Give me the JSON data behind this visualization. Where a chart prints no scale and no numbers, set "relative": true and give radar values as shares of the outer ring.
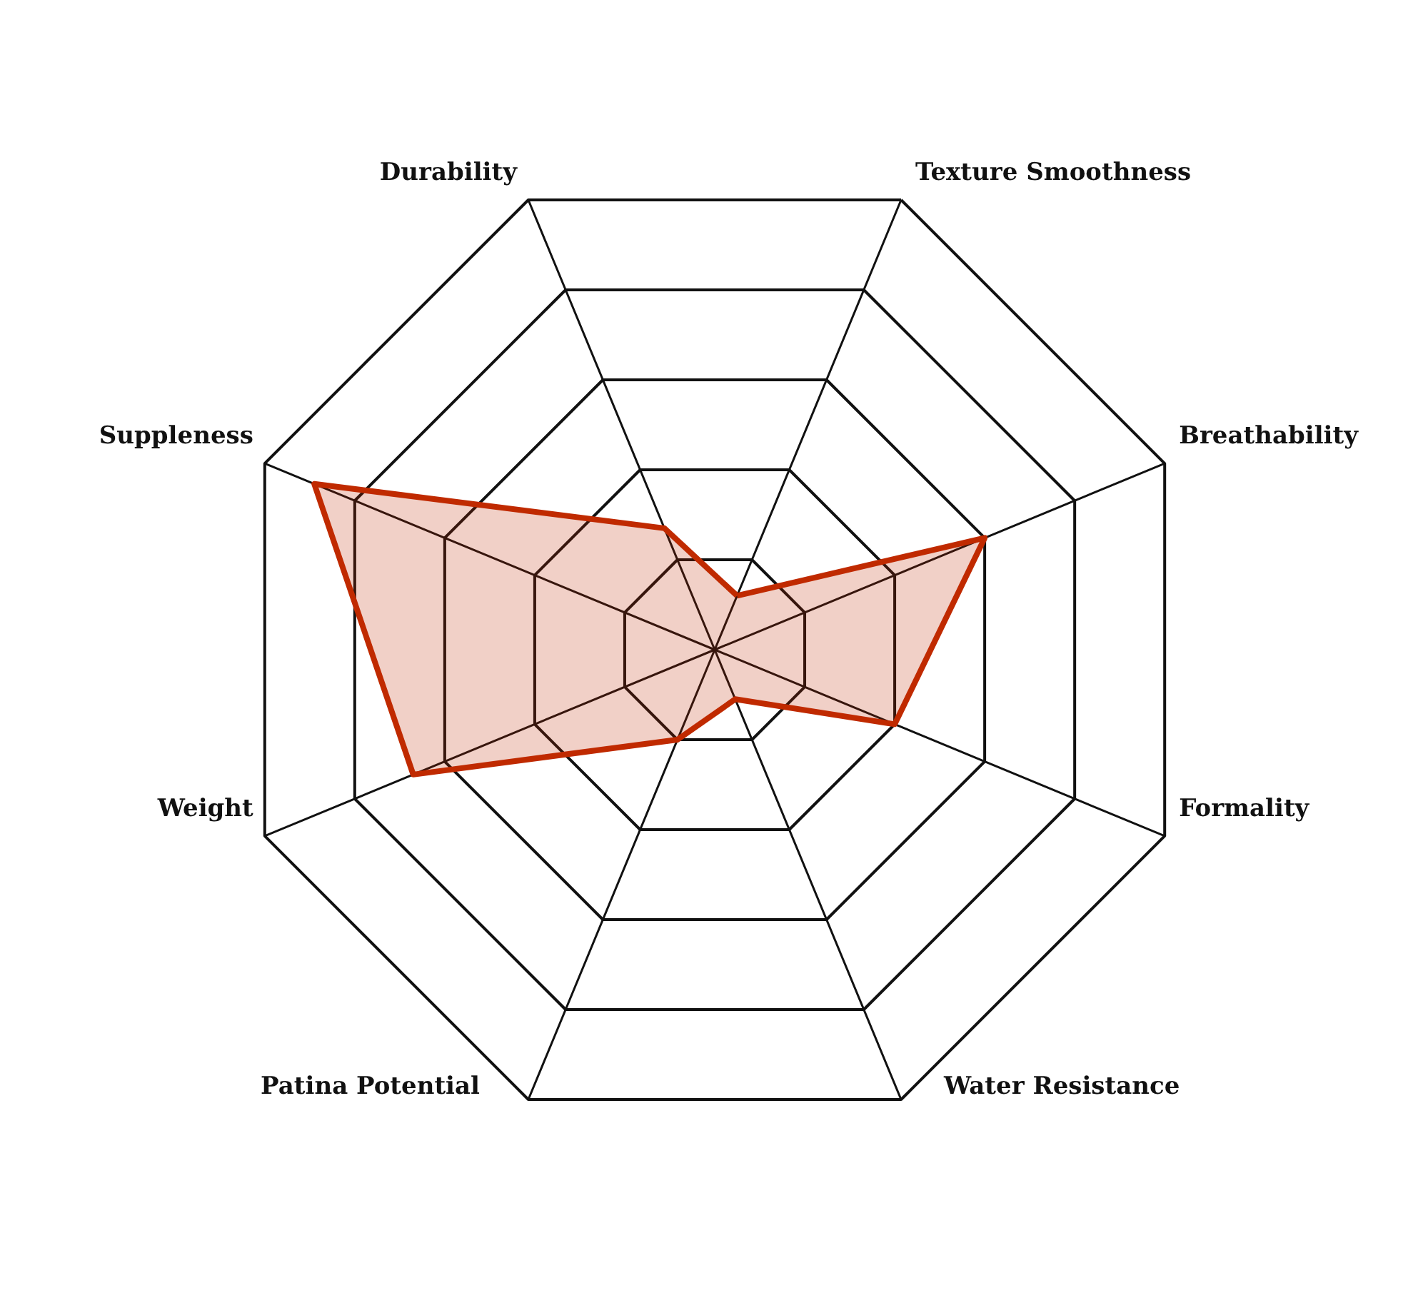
{
  "chart_data": {
    "type": "radar",
    "relative": true,
    "categories": [
      "Texture Smoothness",
      "Breathability",
      "Formality",
      "Water Resistance",
      "Patina Potential",
      "Weight",
      "Suppleness",
      "Durability"
    ],
    "series": [
      {
        "color": "#c02a00",
        "values": [
          0.12,
          0.6,
          0.4,
          0.11,
          0.2,
          0.67,
          0.89,
          0.27
        ]
      }
    ]
  }
}
